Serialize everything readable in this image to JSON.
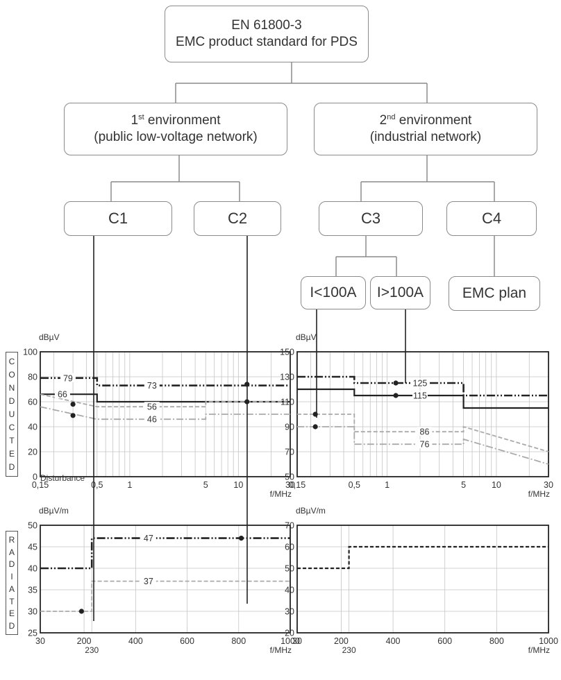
{
  "top_box": {
    "line1": "EN 61800-3",
    "line2": "EMC product standard for PDS"
  },
  "env1": {
    "ordinal": "1",
    "sup": "st",
    "word": " environment",
    "line2": "(public low-voltage network)"
  },
  "env2": {
    "ordinal": "2",
    "sup": "nd",
    "word": " environment",
    "line2": "(industrial network)"
  },
  "categories": {
    "c1": "C1",
    "c2": "C2",
    "c3": "C3",
    "c4": "C4"
  },
  "current": {
    "low": "I<100A",
    "high": "I>100A"
  },
  "emc_plan": "EMC plan",
  "side_labels": {
    "conducted": [
      "C",
      "O",
      "N",
      "D",
      "U",
      "C",
      "T",
      "E",
      "D"
    ],
    "radiated": [
      "R",
      "A",
      "D",
      "I",
      "A",
      "T",
      "E",
      "D"
    ]
  },
  "extra_labels": {
    "disturbance": "Disturbance"
  },
  "chart_data": [
    {
      "type": "line",
      "ylabel": "dBµV",
      "xlabel": "f/MHz",
      "xscale": "log",
      "xlim": [
        0.15,
        30
      ],
      "ylim": [
        0,
        100
      ],
      "y_ticks": [
        0,
        20,
        40,
        60,
        80,
        100
      ],
      "x_ticks": [
        0.15,
        0.5,
        1,
        5,
        10,
        30
      ],
      "x_tick_labels": [
        "0,15",
        "0,5",
        "1",
        "5",
        "10",
        "30"
      ],
      "grid": true,
      "series": [
        {
          "style": "dashdot-bold",
          "points": [
            [
              0.15,
              79
            ],
            [
              0.5,
              79
            ],
            [
              0.5,
              73
            ],
            [
              30,
              73
            ]
          ]
        },
        {
          "style": "solid-bold",
          "points": [
            [
              0.15,
              66
            ],
            [
              0.5,
              66
            ],
            [
              0.5,
              60
            ],
            [
              30,
              60
            ]
          ]
        },
        {
          "style": "dashed-light",
          "points": [
            [
              0.15,
              66
            ],
            [
              0.5,
              56
            ],
            [
              5,
              56
            ],
            [
              5,
              60
            ],
            [
              30,
              60
            ]
          ]
        },
        {
          "style": "dashdot-light",
          "points": [
            [
              0.15,
              56
            ],
            [
              0.5,
              46
            ],
            [
              5,
              46
            ],
            [
              5,
              50
            ],
            [
              30,
              50
            ]
          ]
        }
      ],
      "annotations": [
        {
          "text": "79",
          "x": 0.27,
          "y": 79
        },
        {
          "text": "73",
          "x": 1.6,
          "y": 73
        },
        {
          "text": "66",
          "x": 0.24,
          "y": 66
        },
        {
          "text": "56",
          "x": 1.6,
          "y": 56
        },
        {
          "text": "46",
          "x": 1.6,
          "y": 46
        }
      ],
      "markers": [
        {
          "x": 0.3,
          "y": 58
        },
        {
          "x": 0.3,
          "y": 49
        },
        {
          "x": 12,
          "y": 74
        },
        {
          "x": 12,
          "y": 60
        }
      ]
    },
    {
      "type": "line",
      "ylabel": "dBµV",
      "xlabel": "f/MHz",
      "xscale": "log",
      "xlim": [
        0.15,
        30
      ],
      "ylim": [
        50,
        150
      ],
      "y_ticks": [
        50,
        70,
        90,
        110,
        130,
        150
      ],
      "x_ticks": [
        0.15,
        0.5,
        1,
        5,
        10,
        30
      ],
      "x_tick_labels": [
        "0,15",
        "0,5",
        "1",
        "5",
        "10",
        "30"
      ],
      "grid": true,
      "series": [
        {
          "style": "dashdot-bold",
          "points": [
            [
              0.15,
              130
            ],
            [
              0.5,
              130
            ],
            [
              0.5,
              125
            ],
            [
              5,
              125
            ],
            [
              5,
              115
            ],
            [
              30,
              115
            ]
          ]
        },
        {
          "style": "solid-bold",
          "points": [
            [
              0.15,
              120
            ],
            [
              0.5,
              120
            ],
            [
              0.5,
              115
            ],
            [
              5,
              115
            ],
            [
              5,
              105
            ],
            [
              30,
              105
            ]
          ]
        },
        {
          "style": "dashed-light",
          "points": [
            [
              0.15,
              100
            ],
            [
              0.5,
              100
            ],
            [
              0.5,
              86
            ],
            [
              5,
              86
            ],
            [
              5,
              90
            ],
            [
              30,
              70
            ]
          ]
        },
        {
          "style": "dashdot-light",
          "points": [
            [
              0.15,
              90
            ],
            [
              0.5,
              90
            ],
            [
              0.5,
              76
            ],
            [
              5,
              76
            ],
            [
              5,
              80
            ],
            [
              30,
              60
            ]
          ]
        }
      ],
      "annotations": [
        {
          "text": "125",
          "x": 2.0,
          "y": 125
        },
        {
          "text": "115",
          "x": 2.0,
          "y": 115
        },
        {
          "text": "86",
          "x": 2.2,
          "y": 86
        },
        {
          "text": "76",
          "x": 2.2,
          "y": 76
        }
      ],
      "markers": [
        {
          "x": 0.22,
          "y": 100
        },
        {
          "x": 0.22,
          "y": 90
        },
        {
          "x": 1.2,
          "y": 125
        },
        {
          "x": 1.2,
          "y": 115
        }
      ]
    },
    {
      "type": "line",
      "ylabel": "dBµV/m",
      "xlabel": "f/MHz",
      "xscale": "linear",
      "xlim": [
        30,
        1000
      ],
      "ylim": [
        25,
        50
      ],
      "y_ticks": [
        25,
        30,
        35,
        40,
        45,
        50
      ],
      "x_ticks": [
        30,
        200,
        400,
        600,
        800,
        1000
      ],
      "x_tick_labels": [
        "30",
        "200",
        "400",
        "600",
        "800",
        "1000"
      ],
      "extra_x_label": "230",
      "grid": true,
      "series": [
        {
          "style": "dashdot-bold",
          "points": [
            [
              30,
              40
            ],
            [
              230,
              40
            ],
            [
              230,
              47
            ],
            [
              1000,
              47
            ]
          ]
        },
        {
          "style": "dashed-light",
          "points": [
            [
              30,
              30
            ],
            [
              230,
              30
            ],
            [
              230,
              37
            ],
            [
              1000,
              37
            ]
          ]
        }
      ],
      "annotations": [
        {
          "text": "47",
          "x": 450,
          "y": 47
        },
        {
          "text": "37",
          "x": 450,
          "y": 37
        }
      ],
      "markers": [
        {
          "x": 190,
          "y": 30
        },
        {
          "x": 810,
          "y": 47
        }
      ]
    },
    {
      "type": "line",
      "ylabel": "dBµV/m",
      "xlabel": "f/MHz",
      "xscale": "linear",
      "xlim": [
        30,
        1000
      ],
      "ylim": [
        20,
        70
      ],
      "y_ticks": [
        20,
        30,
        40,
        50,
        60,
        70
      ],
      "x_ticks": [
        30,
        200,
        400,
        600,
        800,
        1000
      ],
      "x_tick_labels": [
        "30",
        "200",
        "400",
        "600",
        "800",
        "1000"
      ],
      "extra_x_label": "230",
      "grid": true,
      "series": [
        {
          "style": "dashed-bold",
          "points": [
            [
              30,
              50
            ],
            [
              230,
              50
            ],
            [
              230,
              60
            ],
            [
              1000,
              60
            ]
          ]
        }
      ],
      "annotations": [],
      "markers": []
    }
  ]
}
